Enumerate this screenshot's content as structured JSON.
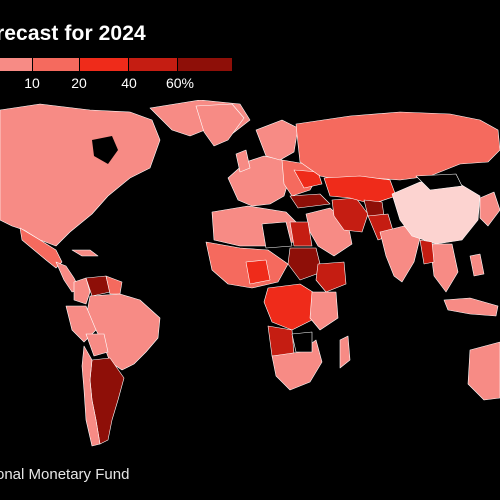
{
  "title": "recast for 2024",
  "legend": {
    "colors": [
      "#f78b85",
      "#f56a5e",
      "#ef2b1a",
      "#c51d12",
      "#8e0f08"
    ],
    "labels": [
      "10",
      "20",
      "40",
      "60%"
    ]
  },
  "source": "onal Monetary Fund",
  "background": "#000000",
  "border_color": "#ffffff"
}
